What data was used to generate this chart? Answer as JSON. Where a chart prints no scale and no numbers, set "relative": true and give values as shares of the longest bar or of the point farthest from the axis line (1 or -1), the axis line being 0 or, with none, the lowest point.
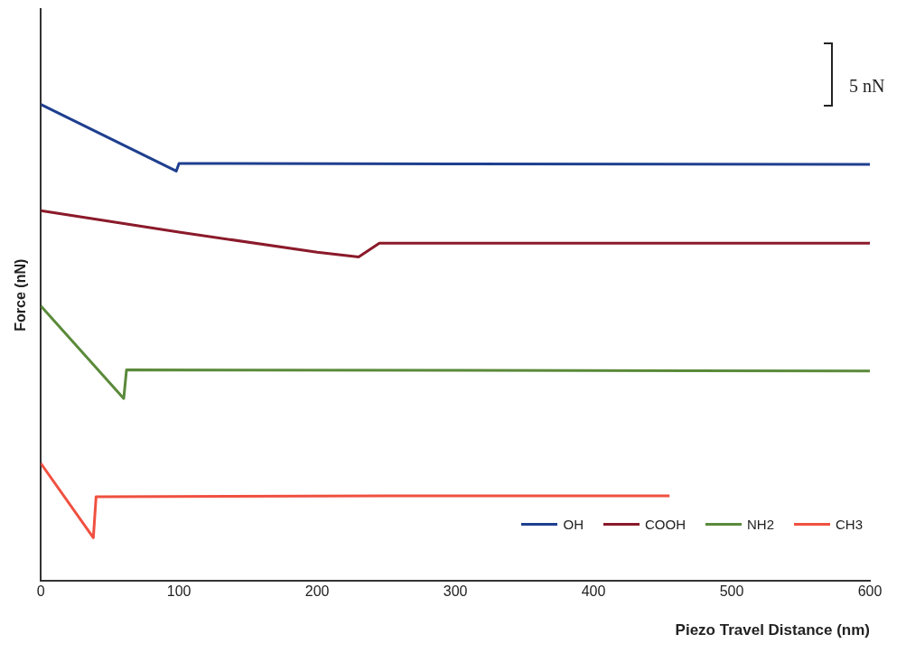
{
  "chart_data": {
    "type": "line",
    "relative": true,
    "xlabel": "Piezo Travel Distance (nm)",
    "ylabel": "Force (nN)",
    "xlim": [
      0,
      600
    ],
    "xticks": [
      0,
      100,
      200,
      300,
      400,
      500,
      600
    ],
    "legend": "bottom right",
    "marker": "none",
    "line_style": "solid",
    "annotations": [
      "5 nN"
    ],
    "series": [
      {
        "name": "OH",
        "color": "#1f3f8f",
        "x": [
          0,
          98,
          100,
          300,
          600
        ],
        "values": [
          1.0,
          0.86,
          0.876,
          0.875,
          0.874
        ]
      },
      {
        "name": "COOH",
        "color": "#8b1a2a",
        "x": [
          0,
          100,
          200,
          230,
          245,
          350,
          600
        ],
        "values": [
          0.777,
          0.732,
          0.69,
          0.68,
          0.709,
          0.709,
          0.709
        ]
      },
      {
        "name": "NH2",
        "color": "#5a8a3a",
        "x": [
          0,
          60,
          62,
          300,
          600
        ],
        "values": [
          0.577,
          0.383,
          0.443,
          0.442,
          0.441
        ]
      },
      {
        "name": "CH3",
        "color": "#f05040",
        "x": [
          0,
          38,
          40,
          250,
          455
        ],
        "values": [
          0.247,
          0.091,
          0.177,
          0.179,
          0.179
        ]
      }
    ]
  }
}
